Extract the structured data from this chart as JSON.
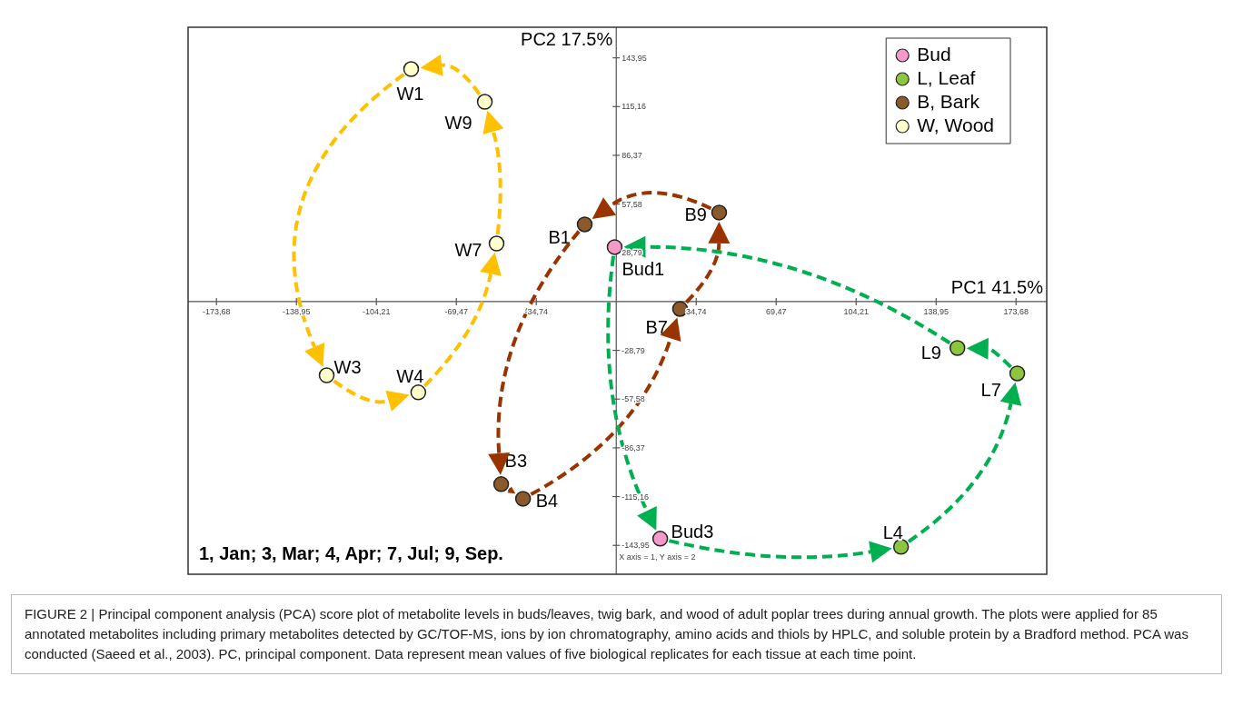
{
  "chart_data": {
    "type": "scatter",
    "xlabel": "PC1 41.5%",
    "ylabel": "PC2 17.5%",
    "xlim": [
      -186,
      187
    ],
    "ylim": [
      -161,
      162
    ],
    "xticks": [
      {
        "value": -173.68,
        "label": "-173,68"
      },
      {
        "value": -138.95,
        "label": "-138,95"
      },
      {
        "value": -104.21,
        "label": "-104,21"
      },
      {
        "value": -69.47,
        "label": "-69,47"
      },
      {
        "value": -34.74,
        "label": "-34,74"
      },
      {
        "value": 34.74,
        "label": "34,74"
      },
      {
        "value": 69.47,
        "label": "69,47"
      },
      {
        "value": 104.21,
        "label": "104,21"
      },
      {
        "value": 138.95,
        "label": "138,95"
      },
      {
        "value": 173.68,
        "label": "173,68"
      }
    ],
    "yticks": [
      {
        "value": 143.95,
        "label": "143,95"
      },
      {
        "value": 115.16,
        "label": "115,16"
      },
      {
        "value": 86.37,
        "label": "86,37"
      },
      {
        "value": 57.58,
        "label": "57,58"
      },
      {
        "value": 28.79,
        "label": "28,79"
      },
      {
        "value": -28.79,
        "label": "-28,79"
      },
      {
        "value": -57.58,
        "label": "-57,58"
      },
      {
        "value": -86.37,
        "label": "-86,37"
      },
      {
        "value": -115.16,
        "label": "-115,16"
      },
      {
        "value": -143.95,
        "label": "-143,95"
      }
    ],
    "legend": "top right",
    "series": [
      {
        "type": "scatter",
        "name": "Bud",
        "color": "#f49ac8",
        "marker": "circle",
        "x": [
          -0.7,
          19.1
        ],
        "values": [
          32.2,
          -140.0
        ],
        "value_labels": [
          "Bud1",
          "Bud3"
        ]
      },
      {
        "type": "scatter",
        "name": "L, Leaf",
        "color": "#8cc63f",
        "marker": "circle",
        "x": [
          123.7,
          174.2,
          148.2
        ],
        "values": [
          -144.8,
          -42.4,
          -27.4
        ],
        "value_labels": [
          "L4",
          "L7",
          "L9"
        ]
      },
      {
        "type": "scatter",
        "name": "B, Bark",
        "color": "#8b5a2b",
        "marker": "circle",
        "x": [
          -13.7,
          -50.0,
          -40.5,
          27.7,
          44.7
        ],
        "values": [
          45.6,
          -107.8,
          -116.4,
          -4.3,
          52.6
        ],
        "value_labels": [
          "B1",
          "B3",
          "B4",
          "B7",
          "B9"
        ]
      },
      {
        "type": "scatter",
        "name": "W, Wood",
        "color": "#ffffcc",
        "marker": "circle",
        "x": [
          -89.1,
          -125.8,
          -86.0,
          -52.0,
          -57.1
        ],
        "values": [
          137.3,
          -43.5,
          -53.6,
          34.3,
          118.0
        ],
        "value_labels": [
          "W1",
          "W3",
          "W4",
          "W7",
          "W9"
        ]
      }
    ],
    "annotations": [
      "1, Jan; 3, Mar; 4, Apr; 7, Jul; 9, Sep.",
      "X axis = 1, Y axis = 2",
      "FIGURE 2 | Principal component analysis (PCA) score plot of metabolite levels in buds/leaves, twig bark, and wood of adult poplar trees during annual growth. The plots were applied for 85 annotated metabolites including primary metabolites detected by GC/TOF-MS, ions by ion chromatography, amino acids and thiols by HPLC, and soluble protein by a Bradford method. PCA was conducted (Saeed et al., 2003). PC, principal component. Data represent mean values of five biological replicates for each tissue at each time point."
    ]
  }
}
